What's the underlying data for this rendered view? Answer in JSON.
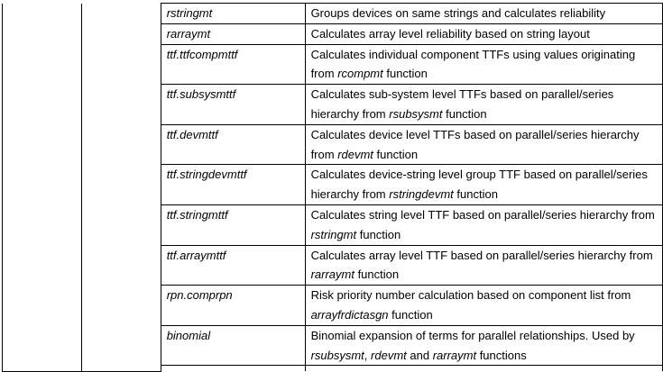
{
  "rows": [
    {
      "name": "rstringmt",
      "desc": [
        {
          "t": "Groups devices on same strings and calculates reliability"
        }
      ]
    },
    {
      "name": "rarraymt",
      "desc": [
        {
          "t": "Calculates array level reliability based on string layout"
        }
      ]
    },
    {
      "name": "ttf.ttfcompmttf",
      "desc": [
        {
          "t": "Calculates individual component TTFs using values originating from "
        },
        {
          "t": "rcompmt",
          "i": true
        },
        {
          "t": " function"
        }
      ]
    },
    {
      "name": "ttf.subsysmttf",
      "desc": [
        {
          "t": "Calculates sub-system level TTFs based on parallel/series hierarchy from "
        },
        {
          "t": "rsubsysmt",
          "i": true
        },
        {
          "t": " function"
        }
      ]
    },
    {
      "name": "ttf.devmttf",
      "desc": [
        {
          "t": "Calculates device level TTFs based on parallel/series hierarchy from "
        },
        {
          "t": "rdevmt",
          "i": true
        },
        {
          "t": " function"
        }
      ]
    },
    {
      "name": "ttf.stringdevmttf",
      "desc": [
        {
          "t": "Calculates device-string level group TTF based on parallel/series hierarchy from "
        },
        {
          "t": "rstringdevmt",
          "i": true
        },
        {
          "t": " function"
        }
      ]
    },
    {
      "name": "ttf.stringmttf",
      "desc": [
        {
          "t": "Calculates string level TTF based on parallel/series hierarchy from "
        },
        {
          "t": "rstringmt",
          "i": true
        },
        {
          "t": " function"
        }
      ]
    },
    {
      "name": "ttf.arraymttf",
      "desc": [
        {
          "t": "Calculates array level TTF based on parallel/series hierarchy from "
        },
        {
          "t": "rarraymt",
          "i": true
        },
        {
          "t": " function"
        }
      ]
    },
    {
      "name": "rpn.comprpn",
      "desc": [
        {
          "t": "Risk priority number calculation based on component list from "
        },
        {
          "t": "arrayfrdictasgn",
          "i": true
        },
        {
          "t": " function"
        }
      ]
    },
    {
      "name": "binomial",
      "desc": [
        {
          "t": "Binomial expansion of terms for parallel relationships. Used by "
        },
        {
          "t": "rsubsysmt",
          "i": true
        },
        {
          "t": ", "
        },
        {
          "t": "rdevmt",
          "i": true
        },
        {
          "t": " and "
        },
        {
          "t": "rarraymt",
          "i": true
        },
        {
          "t": " functions"
        }
      ]
    }
  ]
}
